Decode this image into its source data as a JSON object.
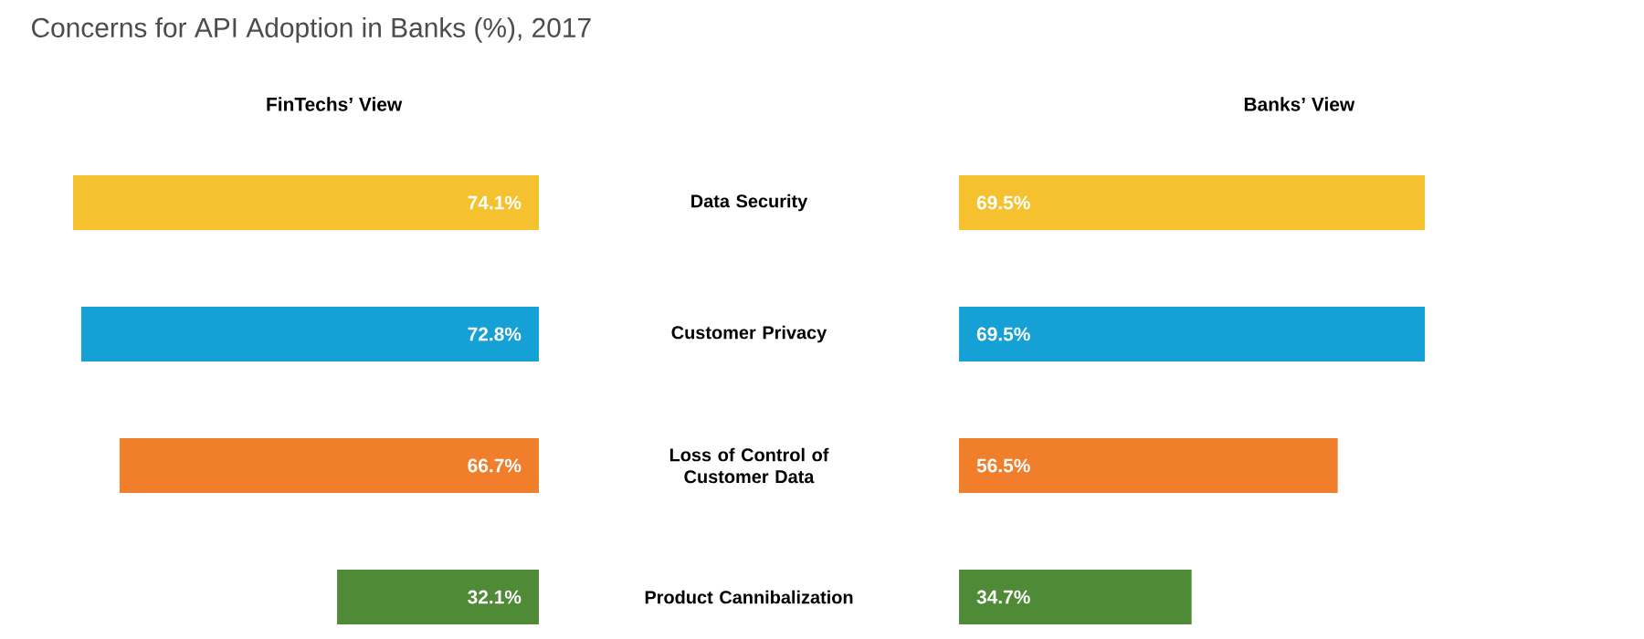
{
  "chart_data": [
    {
      "type": "bar",
      "orientation": "horizontal",
      "title": "Concerns for API Adoption in Banks (%), 2017",
      "subtitle": "FinTechs’ View",
      "categories": [
        "Data Security",
        "Customer Privacy",
        "Loss of Control of Customer Data",
        "Product Cannibalization"
      ],
      "values": [
        74.1,
        72.8,
        66.7,
        32.1
      ],
      "value_labels": [
        "74.1%",
        "72.8%",
        "66.7%",
        "32.1%"
      ],
      "colors": [
        "#f6c12e",
        "#16a1d6",
        "#f07e2a",
        "#4f8a36"
      ],
      "tick_labels": "y"
    },
    {
      "type": "bar",
      "orientation": "horizontal",
      "subtitle": "Banks’ View",
      "categories": [
        null,
        null,
        null,
        null
      ],
      "values": [
        69.5,
        69.5,
        56.5,
        34.7
      ],
      "value_labels": [
        "69.5%",
        "69.5%",
        "56.5%",
        "34.7%"
      ],
      "colors": [
        "#f6c12e",
        "#16a1d6",
        "#f07e2a",
        "#4f8a36"
      ],
      "tick_labels": false
    }
  ]
}
